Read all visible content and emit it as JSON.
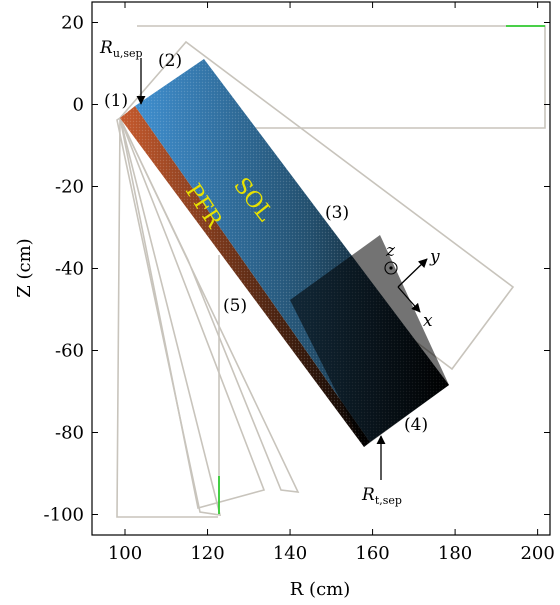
{
  "axes": {
    "xlabel": "R (cm)",
    "ylabel": "Z (cm)",
    "xticks": [
      "100",
      "120",
      "140",
      "160",
      "180",
      "200"
    ],
    "yticks": [
      "20",
      "0",
      "-20",
      "-40",
      "-60",
      "-80",
      "-100"
    ],
    "xlim": [
      92,
      203
    ],
    "ylim": [
      -105,
      25
    ]
  },
  "labels": {
    "p1": "(1)",
    "p2": "(2)",
    "p3": "(3)",
    "p4": "(4)",
    "p5": "(5)",
    "sol": "SOL",
    "pfr": "PFR",
    "r_u_main": "R",
    "r_u_sub": "u,sep",
    "r_t_main": "R",
    "r_t_sub": "t,sep",
    "z_axis": "z",
    "y_axis": "y",
    "x_axis": "x"
  },
  "colors": {
    "outline": "#c8c4bc",
    "sol_grid": "#3a86c6",
    "pfr_grid": "#c0502a",
    "target_end": "#000000",
    "marker": "#33cc33",
    "region_text": "#e8e200"
  }
}
